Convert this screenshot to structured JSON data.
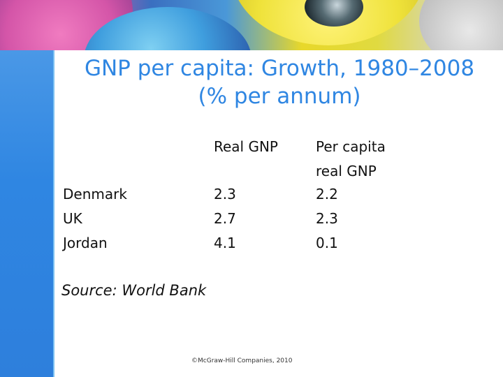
{
  "slide": {
    "title_line1": "GNP per capita: Growth, 1980–2008",
    "title_line2": "(% per annum)",
    "table": {
      "col_real_gnp": "Real GNP",
      "col_per_capita_line1": "Per capita",
      "col_per_capita_line2": "real GNP",
      "rows": [
        {
          "country": "Denmark",
          "real_gnp": "2.3",
          "per_capita": "2.2"
        },
        {
          "country": "UK",
          "real_gnp": "2.7",
          "per_capita": "2.3"
        },
        {
          "country": "Jordan",
          "real_gnp": "4.1",
          "per_capita": "0.1"
        }
      ]
    },
    "source": "Source: World Bank",
    "copyright": "©McGraw-Hill Companies, 2010"
  },
  "colors": {
    "accent_blue": "#2f86e2",
    "text": "#111111"
  }
}
